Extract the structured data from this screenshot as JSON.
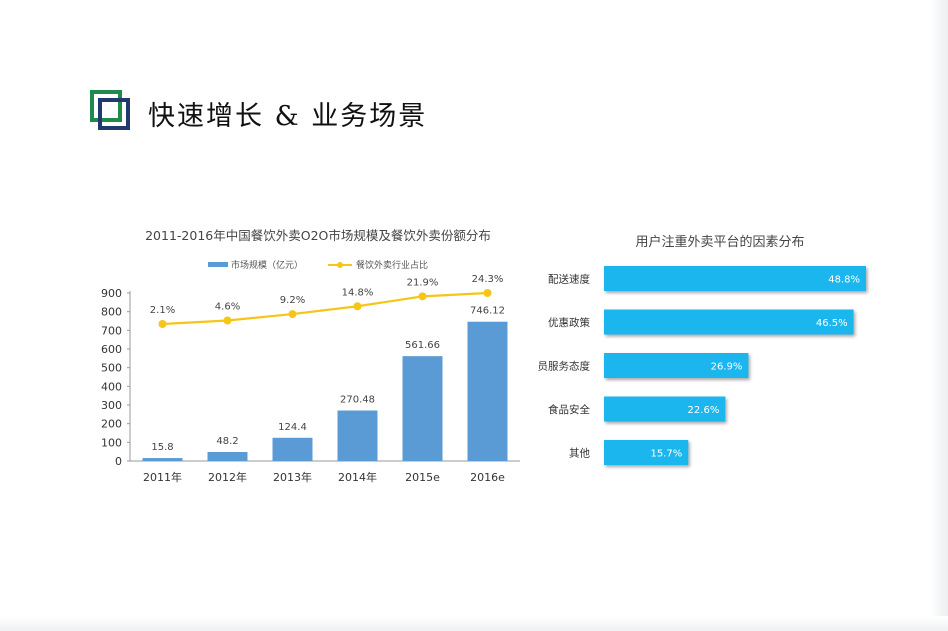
{
  "slide": {
    "title": "快速增长 & 业务场景"
  },
  "chart_data": [
    {
      "type": "bar+line",
      "title": "2011-2016年中国餐饮外卖O2O市场规模及餐饮外卖份额分布",
      "categories": [
        "2011年",
        "2012年",
        "2013年",
        "2014年",
        "2015e",
        "2016e"
      ],
      "series": [
        {
          "name": "市场规模（亿元）",
          "kind": "bar",
          "color": "#5b9bd5",
          "values": [
            15.8,
            48.2,
            124.4,
            270.48,
            561.66,
            746.12
          ],
          "labels": [
            "15.8",
            "48.2",
            "124.4",
            "270.48",
            "561.66",
            "746.12"
          ]
        },
        {
          "name": "餐饮外卖行业占比",
          "kind": "line",
          "color": "#f5c518",
          "values": [
            2.1,
            4.6,
            9.2,
            14.8,
            21.9,
            24.3
          ],
          "labels": [
            "2.1%",
            "4.6%",
            "9.2%",
            "14.8%",
            "21.9%",
            "24.3%"
          ]
        }
      ],
      "y_ticks": [
        "0",
        "100",
        "200",
        "300",
        "400",
        "500",
        "600",
        "700",
        "800",
        "900"
      ],
      "ylim": [
        0,
        900
      ],
      "legend": "top"
    },
    {
      "type": "horizontal-bar",
      "title": "用户注重外卖平台的因素分布",
      "color": "#1ab6ee",
      "categories": [
        "配送速度",
        "优惠政策",
        "员服务态度",
        "食品安全",
        "其他"
      ],
      "values": [
        48.8,
        46.5,
        26.9,
        22.6,
        15.7
      ],
      "labels": [
        "48.8%",
        "46.5%",
        "26.9%",
        "22.6%",
        "15.7%"
      ],
      "xlim": [
        0,
        48.8
      ]
    }
  ]
}
